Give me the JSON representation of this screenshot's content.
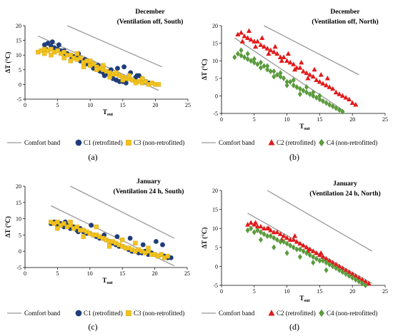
{
  "chart_data": [
    {
      "type": "scatter",
      "panel_label": "(a)",
      "annotation": [
        "December",
        "(Ventilation off, South)"
      ],
      "xlabel": "T",
      "xlabel_sub": "out",
      "ylabel": "ΔT (°C)",
      "xlim": [
        0,
        25
      ],
      "ylim": [
        -5,
        20
      ],
      "xticks": [
        0,
        5,
        10,
        15,
        20,
        25
      ],
      "yticks": [
        -5,
        0,
        5,
        10,
        15,
        20
      ],
      "grid": false,
      "legend": "bottom",
      "comfort_band": {
        "name": "Comfort band",
        "color": "#999999",
        "x": [
          2,
          20.5,
          6.5,
          21
        ],
        "y": [
          16.5,
          -2,
          20,
          6
        ]
      },
      "series": [
        {
          "name": "C1 (retrofitted)",
          "marker": "circle",
          "color": "#1f3d7a",
          "x": [
            3.0,
            3.5,
            4.0,
            4.5,
            5.0,
            5.5,
            6.0,
            6.5,
            7.0,
            7.5,
            8.0,
            8.5,
            9.0,
            9.5,
            10.0,
            10.5,
            11.0,
            11.5,
            12.0,
            12.5,
            13.0,
            13.5,
            14.0,
            14.5,
            15.0,
            15.5,
            16.0,
            16.5,
            17.0,
            17.5,
            18.0,
            18.5,
            19.0,
            3.2,
            4.2,
            5.2,
            6.2,
            7.2,
            8.2,
            9.2,
            10.2,
            11.2,
            12.2,
            13.2,
            14.2,
            15.2,
            16.2,
            17.2
          ],
          "y": [
            13.5,
            14.0,
            13.0,
            12.5,
            12.0,
            11.5,
            11.5,
            10.5,
            10.0,
            9.5,
            9.0,
            8.0,
            8.0,
            7.0,
            6.5,
            5.5,
            5.5,
            4.5,
            4.0,
            3.5,
            3.0,
            2.0,
            1.5,
            1.0,
            1.0,
            0.5,
            2.0,
            1.5,
            2.5,
            3.0,
            2.0,
            1.0,
            0.5,
            12.0,
            14.5,
            13.5,
            10.5,
            9.0,
            10.5,
            8.5,
            7.0,
            6.5,
            3.0,
            5.0,
            5.5,
            6.0,
            4.0,
            3.0
          ]
        },
        {
          "name": "C3 (non-retrofitted)",
          "marker": "square",
          "color": "#f2c21f",
          "x": [
            2.0,
            2.5,
            3.0,
            3.5,
            4.0,
            4.5,
            5.0,
            5.5,
            6.0,
            6.5,
            7.0,
            7.5,
            8.0,
            8.5,
            9.0,
            9.5,
            10.0,
            10.5,
            11.0,
            11.5,
            12.0,
            12.5,
            13.0,
            13.5,
            14.0,
            14.5,
            15.0,
            15.5,
            16.0,
            16.5,
            17.0,
            17.5,
            18.0,
            18.5,
            19.0,
            19.5,
            20.0,
            20.5,
            3.0,
            4.0,
            5.0,
            6.0,
            7.0,
            8.0,
            9.0,
            10.0,
            11.0,
            12.0,
            13.0,
            14.0,
            15.0,
            16.0,
            17.0,
            18.0
          ],
          "y": [
            11.0,
            11.5,
            12.0,
            11.5,
            12.0,
            11.0,
            11.5,
            10.5,
            11.0,
            10.0,
            10.0,
            9.0,
            8.5,
            9.0,
            7.5,
            8.0,
            6.5,
            7.0,
            6.0,
            5.5,
            5.0,
            4.5,
            4.0,
            3.5,
            3.5,
            3.0,
            2.5,
            2.0,
            2.0,
            1.5,
            1.0,
            1.0,
            0.5,
            1.0,
            0.0,
            0.5,
            0.0,
            0.0,
            10.5,
            10.0,
            11.5,
            9.0,
            8.0,
            10.5,
            6.0,
            8.0,
            5.0,
            6.5,
            2.5,
            4.0,
            1.5,
            3.0,
            0.5,
            2.0
          ]
        }
      ]
    },
    {
      "type": "scatter",
      "panel_label": "(b)",
      "annotation": [
        "December",
        "(Ventilation off, North)"
      ],
      "xlabel": "T",
      "xlabel_sub": "out",
      "ylabel": "ΔT (°C)",
      "xlim": [
        0,
        25
      ],
      "ylim": [
        -5,
        20
      ],
      "xticks": [
        0,
        5,
        10,
        15,
        20,
        25
      ],
      "yticks": [
        -5,
        0,
        5,
        10,
        15,
        20
      ],
      "grid": false,
      "legend": "bottom",
      "comfort_band": {
        "name": "Comfort band",
        "color": "#999999",
        "x": [
          2,
          18.5,
          6.5,
          21
        ],
        "y": [
          16.5,
          -4,
          20,
          6
        ]
      },
      "series": [
        {
          "name": "C2 (retrofitted)",
          "marker": "triangle",
          "color": "#e01b1b",
          "x": [
            2.5,
            3.0,
            3.5,
            4.0,
            4.5,
            5.0,
            5.5,
            6.0,
            6.5,
            7.0,
            7.5,
            8.0,
            8.5,
            9.0,
            9.5,
            10.0,
            10.5,
            11.0,
            11.5,
            12.0,
            12.5,
            13.0,
            13.5,
            14.0,
            14.5,
            15.0,
            15.5,
            16.0,
            16.5,
            17.0,
            17.5,
            18.0,
            18.5,
            19.0,
            19.5,
            20.0,
            20.5,
            3.2,
            4.2,
            5.2,
            6.2,
            7.2,
            8.2,
            9.2,
            10.2,
            11.2,
            12.2,
            13.2,
            14.2,
            15.2,
            16.2
          ],
          "y": [
            17.5,
            18.0,
            17.0,
            16.5,
            16.0,
            15.5,
            15.5,
            14.5,
            14.0,
            13.5,
            13.0,
            12.5,
            12.0,
            11.0,
            11.0,
            10.0,
            9.5,
            9.0,
            8.0,
            8.0,
            7.0,
            6.5,
            6.0,
            5.5,
            4.5,
            4.0,
            3.5,
            3.0,
            2.5,
            2.0,
            1.0,
            0.5,
            0.0,
            -0.5,
            -1.0,
            -2.0,
            -2.5,
            15.5,
            18.5,
            14.0,
            16.5,
            12.0,
            14.0,
            10.0,
            12.0,
            7.5,
            9.5,
            5.0,
            7.5,
            6.0,
            5.0
          ]
        },
        {
          "name": "C4 (non-retrofitted)",
          "marker": "diamond",
          "color": "#5a9a3c",
          "x": [
            2.0,
            2.5,
            3.0,
            3.5,
            4.0,
            4.5,
            5.0,
            5.5,
            6.0,
            6.5,
            7.0,
            7.5,
            8.0,
            8.5,
            9.0,
            9.5,
            10.0,
            10.5,
            11.0,
            11.5,
            12.0,
            12.5,
            13.0,
            13.5,
            14.0,
            14.5,
            15.0,
            15.5,
            16.0,
            16.5,
            17.0,
            17.5,
            18.0,
            18.5,
            3.0,
            4.0,
            5.0,
            6.0,
            7.0,
            8.0,
            9.0,
            10.0,
            11.0,
            12.0,
            13.0,
            14.0,
            15.0
          ],
          "y": [
            11.0,
            12.0,
            11.5,
            11.0,
            10.5,
            10.0,
            9.5,
            9.0,
            9.5,
            8.5,
            7.5,
            7.0,
            7.0,
            6.0,
            5.5,
            5.0,
            4.0,
            4.0,
            3.0,
            2.5,
            2.0,
            1.5,
            1.0,
            0.5,
            0.0,
            -0.5,
            -1.0,
            -1.5,
            -2.0,
            -2.5,
            -3.0,
            -3.5,
            -4.0,
            -4.5,
            13.0,
            12.0,
            10.5,
            8.0,
            8.5,
            5.5,
            6.5,
            3.0,
            4.5,
            0.5,
            2.5,
            1.0,
            0.0
          ]
        }
      ]
    },
    {
      "type": "scatter",
      "panel_label": "(c)",
      "annotation": [
        "January",
        "(Ventilation 24 h, South)"
      ],
      "xlabel": "T",
      "xlabel_sub": "out",
      "ylabel": "ΔT (°C)",
      "xlim": [
        0,
        25
      ],
      "ylim": [
        -5,
        20
      ],
      "xticks": [
        0,
        5,
        10,
        15,
        20,
        25
      ],
      "yticks": [
        -5,
        0,
        5,
        10,
        15,
        20
      ],
      "grid": false,
      "legend": "bottom",
      "comfort_band": {
        "name": "Comfort band",
        "color": "#999999",
        "x": [
          4,
          23,
          7,
          23
        ],
        "y": [
          14,
          -4.5,
          20,
          4
        ]
      },
      "series": [
        {
          "name": "C1 (retrofitted)",
          "marker": "circle",
          "color": "#1f3d7a",
          "x": [
            4.0,
            4.5,
            5.0,
            5.5,
            6.0,
            6.5,
            7.0,
            7.5,
            8.0,
            8.5,
            9.0,
            9.5,
            10.0,
            10.5,
            11.0,
            11.5,
            12.0,
            12.5,
            13.0,
            13.5,
            14.0,
            14.5,
            15.0,
            15.5,
            16.0,
            16.5,
            17.0,
            17.5,
            18.0,
            18.5,
            19.0,
            19.5,
            20.0,
            20.5,
            21.0,
            21.5,
            22.0,
            22.5,
            6.2,
            8.2,
            10.2,
            12.2,
            14.2,
            16.2,
            18.2,
            20.2,
            21.2
          ],
          "y": [
            8.5,
            9.0,
            8.0,
            8.5,
            7.5,
            8.0,
            7.0,
            7.5,
            6.5,
            7.0,
            6.0,
            5.5,
            5.5,
            5.0,
            4.5,
            4.0,
            4.0,
            3.5,
            3.0,
            2.5,
            2.0,
            1.5,
            1.5,
            1.0,
            0.5,
            0.0,
            0.0,
            -0.5,
            -0.5,
            0.0,
            -1.0,
            -0.5,
            -1.0,
            -1.5,
            -1.0,
            -1.5,
            -2.0,
            -2.0,
            9.0,
            6.0,
            8.0,
            5.0,
            4.5,
            4.0,
            2.0,
            3.0,
            2.0
          ]
        },
        {
          "name": "C3 (non-retrofitted)",
          "marker": "square",
          "color": "#f2c21f",
          "x": [
            4.0,
            4.5,
            5.0,
            5.5,
            6.0,
            6.5,
            7.0,
            7.5,
            8.0,
            8.5,
            9.0,
            9.5,
            10.0,
            10.5,
            11.0,
            11.5,
            12.0,
            12.5,
            13.0,
            13.5,
            14.0,
            14.5,
            15.0,
            15.5,
            16.0,
            16.5,
            17.0,
            17.5,
            18.0,
            18.5,
            19.0,
            19.5,
            20.0,
            20.5,
            21.0,
            21.5,
            22.0,
            5.0,
            7.0,
            9.0,
            11.0,
            13.0,
            15.0,
            17.0,
            19.0
          ],
          "y": [
            9.0,
            8.5,
            9.0,
            8.0,
            8.5,
            7.5,
            8.0,
            7.0,
            7.5,
            6.5,
            6.5,
            6.0,
            5.5,
            5.0,
            5.0,
            4.5,
            4.0,
            3.5,
            3.0,
            3.0,
            2.5,
            2.0,
            1.5,
            1.0,
            1.0,
            0.5,
            0.0,
            0.5,
            0.0,
            -0.5,
            0.0,
            -1.0,
            -1.0,
            -1.5,
            -1.0,
            -2.0,
            -1.5,
            7.0,
            9.0,
            4.5,
            7.5,
            1.5,
            3.5,
            2.5,
            1.0
          ]
        }
      ]
    },
    {
      "type": "scatter",
      "panel_label": "(d)",
      "annotation": [
        "January",
        "(Ventilation 24 h, North)"
      ],
      "xlabel": "T",
      "xlabel_sub": "out",
      "ylabel": "ΔT (°C)",
      "xlim": [
        0,
        25
      ],
      "ylim": [
        -5,
        20
      ],
      "xticks": [
        0,
        5,
        10,
        15,
        20,
        25
      ],
      "yticks": [
        -5,
        0,
        5,
        10,
        15,
        20
      ],
      "grid": false,
      "legend": "bottom",
      "comfort_band": {
        "name": "Comfort band",
        "color": "#999999",
        "x": [
          4,
          23,
          7,
          23
        ],
        "y": [
          14,
          -4.5,
          20,
          4
        ]
      },
      "series": [
        {
          "name": "C2 (retrofitted)",
          "marker": "triangle",
          "color": "#e01b1b",
          "x": [
            4.0,
            4.5,
            5.0,
            5.5,
            6.0,
            6.5,
            7.0,
            7.5,
            8.0,
            8.5,
            9.0,
            9.5,
            10.0,
            10.5,
            11.0,
            11.5,
            12.0,
            12.5,
            13.0,
            13.5,
            14.0,
            14.5,
            15.0,
            15.5,
            16.0,
            16.5,
            17.0,
            17.5,
            18.0,
            18.5,
            19.0,
            19.5,
            20.0,
            20.5,
            21.0,
            21.5,
            22.0,
            22.5,
            5.2,
            7.2,
            9.2,
            11.2,
            13.2,
            15.2
          ],
          "y": [
            11.0,
            11.5,
            11.0,
            10.5,
            10.5,
            10.0,
            10.0,
            9.5,
            9.0,
            9.0,
            8.5,
            8.0,
            7.5,
            7.0,
            7.0,
            6.5,
            6.0,
            5.5,
            5.0,
            4.5,
            4.0,
            3.5,
            3.0,
            2.5,
            2.0,
            1.5,
            1.0,
            0.5,
            0.0,
            -0.5,
            -1.0,
            -1.5,
            -2.0,
            -2.5,
            -3.0,
            -3.5,
            -4.0,
            -4.5,
            11.5,
            10.0,
            7.0,
            8.0,
            4.0,
            3.5
          ]
        },
        {
          "name": "C4 (non-retrofitted)",
          "marker": "diamond",
          "color": "#5a9a3c",
          "x": [
            4.0,
            4.5,
            5.0,
            5.5,
            6.0,
            6.5,
            7.0,
            7.5,
            8.0,
            8.5,
            9.0,
            9.5,
            10.0,
            10.5,
            11.0,
            11.5,
            12.0,
            12.5,
            13.0,
            13.5,
            14.0,
            14.5,
            15.0,
            15.5,
            16.0,
            16.5,
            17.0,
            17.5,
            18.0,
            18.5,
            19.0,
            19.5,
            20.0,
            20.5,
            21.0,
            21.5,
            22.0,
            6.0,
            8.0,
            10.0,
            12.0,
            14.0,
            16.0
          ],
          "y": [
            9.5,
            10.0,
            9.0,
            9.5,
            9.0,
            8.5,
            8.0,
            8.0,
            7.5,
            7.0,
            6.5,
            6.5,
            6.0,
            5.5,
            5.0,
            4.5,
            4.5,
            4.0,
            3.5,
            3.0,
            2.5,
            2.0,
            1.5,
            1.5,
            1.0,
            0.5,
            0.0,
            -0.5,
            -1.0,
            -1.5,
            -2.0,
            -2.5,
            -3.0,
            -3.5,
            -4.0,
            -4.5,
            -5.0,
            7.0,
            5.0,
            3.5,
            2.5,
            1.0,
            -1.0
          ]
        }
      ]
    }
  ]
}
